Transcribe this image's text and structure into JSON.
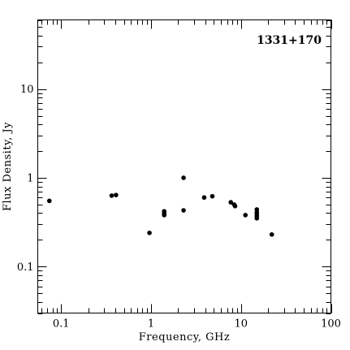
{
  "chart_data": {
    "type": "scatter",
    "title": "1331+170",
    "xlabel": "Frequency, GHz",
    "ylabel": "Flux Density, Jy",
    "xscale": "log",
    "yscale": "log",
    "xlim": [
      0.055,
      100
    ],
    "ylim": [
      0.03,
      60
    ],
    "x_ticks": [
      {
        "value": 0.1,
        "label": "0.1"
      },
      {
        "value": 1,
        "label": "1"
      },
      {
        "value": 10,
        "label": "10"
      },
      {
        "value": 100,
        "label": "100"
      }
    ],
    "y_ticks": [
      {
        "value": 0.1,
        "label": "0.1"
      },
      {
        "value": 1,
        "label": "1"
      },
      {
        "value": 10,
        "label": "10"
      }
    ],
    "grid": false,
    "marker_color": "#000000",
    "points": [
      {
        "x": 0.074,
        "y": 0.55
      },
      {
        "x": 0.365,
        "y": 0.63
      },
      {
        "x": 0.408,
        "y": 0.64
      },
      {
        "x": 0.96,
        "y": 0.24
      },
      {
        "x": 1.4,
        "y": 0.38
      },
      {
        "x": 1.4,
        "y": 0.4
      },
      {
        "x": 1.4,
        "y": 0.42
      },
      {
        "x": 2.3,
        "y": 1.0
      },
      {
        "x": 2.3,
        "y": 0.43
      },
      {
        "x": 3.9,
        "y": 0.6
      },
      {
        "x": 4.8,
        "y": 0.62
      },
      {
        "x": 7.7,
        "y": 0.53
      },
      {
        "x": 8.4,
        "y": 0.5
      },
      {
        "x": 8.6,
        "y": 0.48
      },
      {
        "x": 11.2,
        "y": 0.38
      },
      {
        "x": 15,
        "y": 0.35
      },
      {
        "x": 15,
        "y": 0.37
      },
      {
        "x": 15,
        "y": 0.39
      },
      {
        "x": 15,
        "y": 0.41
      },
      {
        "x": 15,
        "y": 0.44
      },
      {
        "x": 22,
        "y": 0.23
      }
    ]
  }
}
